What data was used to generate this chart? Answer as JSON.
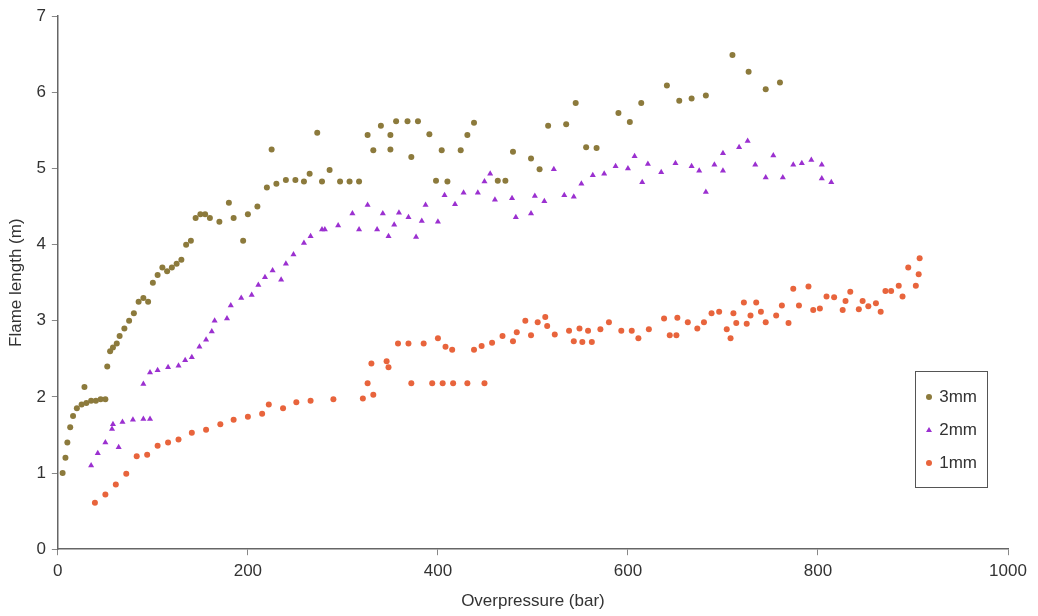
{
  "chart_data": {
    "type": "scatter",
    "xlabel": "Overpressure (bar)",
    "ylabel": "Flame length (m)",
    "xlim": [
      0,
      1000
    ],
    "xticks": [
      0,
      200,
      400,
      600,
      800,
      1000
    ],
    "ylim": [
      0,
      7
    ],
    "yticks": [
      0,
      1,
      2,
      3,
      4,
      5,
      6,
      7
    ],
    "grid": false,
    "legend": "bottom right",
    "series": [
      {
        "name": "3mm",
        "color": "#8c7a3c",
        "marker": "circle",
        "x": [
          5,
          8,
          10,
          13,
          16,
          20,
          25,
          28,
          30,
          35,
          40,
          45,
          50,
          52,
          55,
          58,
          62,
          65,
          70,
          75,
          80,
          85,
          90,
          95,
          100,
          105,
          110,
          115,
          120,
          125,
          130,
          135,
          140,
          145,
          150,
          155,
          160,
          170,
          180,
          185,
          195,
          200,
          210,
          220,
          225,
          230,
          240,
          250,
          259,
          265,
          273,
          278,
          286,
          297,
          307,
          317,
          326,
          332,
          340,
          350,
          350,
          356,
          368,
          372,
          379,
          391,
          398,
          404,
          410,
          424,
          431,
          438,
          463,
          471,
          479,
          498,
          507,
          516,
          535,
          545,
          556,
          567,
          590,
          602,
          614,
          641,
          654,
          667,
          682,
          710,
          727,
          745,
          760
        ],
        "values": [
          1.0,
          1.2,
          1.4,
          1.6,
          1.75,
          1.85,
          1.9,
          2.13,
          1.92,
          1.95,
          1.95,
          1.97,
          1.97,
          2.4,
          2.6,
          2.65,
          2.7,
          2.8,
          2.9,
          3.0,
          3.1,
          3.25,
          3.3,
          3.25,
          3.5,
          3.6,
          3.7,
          3.65,
          3.7,
          3.75,
          3.8,
          4.0,
          4.05,
          4.35,
          4.4,
          4.4,
          4.35,
          4.3,
          4.55,
          4.35,
          4.05,
          4.4,
          4.5,
          4.75,
          5.25,
          4.8,
          4.85,
          4.85,
          4.83,
          4.93,
          5.47,
          4.83,
          4.98,
          4.83,
          4.83,
          4.83,
          5.44,
          5.24,
          5.56,
          5.44,
          5.25,
          5.62,
          5.62,
          5.15,
          5.62,
          5.45,
          4.84,
          5.24,
          4.83,
          5.24,
          5.44,
          5.6,
          4.84,
          4.84,
          5.22,
          5.13,
          4.99,
          5.56,
          5.58,
          5.86,
          5.28,
          5.27,
          5.73,
          5.61,
          5.86,
          6.09,
          5.89,
          5.92,
          5.96,
          6.49,
          6.27,
          6.04,
          6.13
        ]
      },
      {
        "name": "2mm",
        "color": "#9b30d0",
        "marker": "triangle",
        "x": [
          35,
          42,
          50,
          57,
          58,
          64,
          68,
          79,
          90,
          97,
          90,
          97,
          105,
          116,
          127,
          134,
          141,
          149,
          156,
          162,
          165,
          178,
          182,
          193,
          204,
          211,
          218,
          226,
          235,
          240,
          248,
          259,
          266,
          278,
          281,
          295,
          310,
          317,
          326,
          336,
          342,
          348,
          354,
          359,
          369,
          377,
          383,
          387,
          400,
          407,
          418,
          427,
          442,
          449,
          455,
          460,
          478,
          482,
          498,
          502,
          512,
          522,
          533,
          543,
          551,
          563,
          575,
          587,
          600,
          607,
          615,
          621,
          635,
          650,
          667,
          675,
          682,
          691,
          700,
          700,
          717,
          726,
          734,
          745,
          753,
          763,
          774,
          783,
          793,
          804,
          804,
          814
        ],
        "values": [
          1.1,
          1.26,
          1.4,
          1.58,
          1.64,
          1.34,
          1.67,
          1.7,
          1.71,
          1.71,
          2.17,
          2.32,
          2.35,
          2.39,
          2.41,
          2.48,
          2.52,
          2.66,
          2.75,
          2.86,
          3.0,
          3.03,
          3.2,
          3.3,
          3.34,
          3.47,
          3.57,
          3.66,
          3.54,
          3.75,
          3.87,
          4.02,
          4.11,
          4.2,
          4.2,
          4.25,
          4.41,
          4.2,
          4.52,
          4.2,
          4.41,
          4.11,
          4.26,
          4.42,
          4.36,
          4.1,
          4.31,
          4.52,
          4.3,
          4.65,
          4.53,
          4.68,
          4.68,
          4.83,
          4.93,
          4.59,
          4.61,
          4.36,
          4.41,
          4.64,
          4.57,
          4.99,
          4.65,
          4.63,
          4.8,
          4.91,
          4.93,
          5.03,
          5.0,
          5.16,
          4.82,
          5.06,
          4.95,
          5.07,
          5.03,
          4.97,
          4.69,
          5.05,
          5.2,
          4.97,
          5.28,
          5.36,
          5.05,
          4.88,
          5.17,
          4.88,
          5.05,
          5.07,
          5.11,
          5.05,
          4.87,
          4.82
        ]
      },
      {
        "name": "1mm",
        "color": "#e8643c",
        "marker": "circle",
        "x": [
          39,
          50,
          61,
          72,
          83,
          94,
          105,
          116,
          127,
          141,
          156,
          171,
          185,
          200,
          215,
          222,
          237,
          251,
          266,
          290,
          321,
          326,
          330,
          332,
          346,
          348,
          358,
          369,
          372,
          385,
          394,
          400,
          405,
          408,
          415,
          416,
          431,
          438,
          446,
          449,
          457,
          468,
          479,
          483,
          492,
          498,
          505,
          513,
          515,
          523,
          538,
          543,
          549,
          552,
          558,
          562,
          571,
          580,
          593,
          604,
          611,
          622,
          638,
          644,
          651,
          652,
          663,
          673,
          680,
          688,
          696,
          704,
          708,
          711,
          714,
          722,
          725,
          729,
          735,
          740,
          745,
          756,
          762,
          769,
          774,
          780,
          790,
          795,
          802,
          809,
          817,
          826,
          829,
          834,
          843,
          847,
          853,
          861,
          866,
          871,
          877,
          885,
          889,
          895,
          903,
          906,
          907
        ],
        "values": [
          0.61,
          0.72,
          0.85,
          0.99,
          1.22,
          1.24,
          1.36,
          1.4,
          1.44,
          1.53,
          1.57,
          1.64,
          1.7,
          1.74,
          1.78,
          1.9,
          1.85,
          1.93,
          1.95,
          1.97,
          1.98,
          2.18,
          2.44,
          2.03,
          2.47,
          2.39,
          2.7,
          2.7,
          2.18,
          2.7,
          2.18,
          2.77,
          2.18,
          2.66,
          2.62,
          2.18,
          2.18,
          2.62,
          2.67,
          2.18,
          2.71,
          2.8,
          2.73,
          2.85,
          3.0,
          2.81,
          2.98,
          3.05,
          2.93,
          2.82,
          2.87,
          2.73,
          2.9,
          2.72,
          2.87,
          2.72,
          2.89,
          2.98,
          2.87,
          2.87,
          2.77,
          2.89,
          3.03,
          2.81,
          2.81,
          3.04,
          2.98,
          2.9,
          2.98,
          3.1,
          3.12,
          2.89,
          2.77,
          3.1,
          2.97,
          3.24,
          2.96,
          3.07,
          3.24,
          3.12,
          2.98,
          3.07,
          3.2,
          2.97,
          3.42,
          3.2,
          3.45,
          3.14,
          3.16,
          3.32,
          3.31,
          3.14,
          3.26,
          3.38,
          3.15,
          3.26,
          3.19,
          3.23,
          3.12,
          3.39,
          3.39,
          3.46,
          3.32,
          3.7,
          3.46,
          3.61,
          3.82
        ]
      }
    ]
  }
}
